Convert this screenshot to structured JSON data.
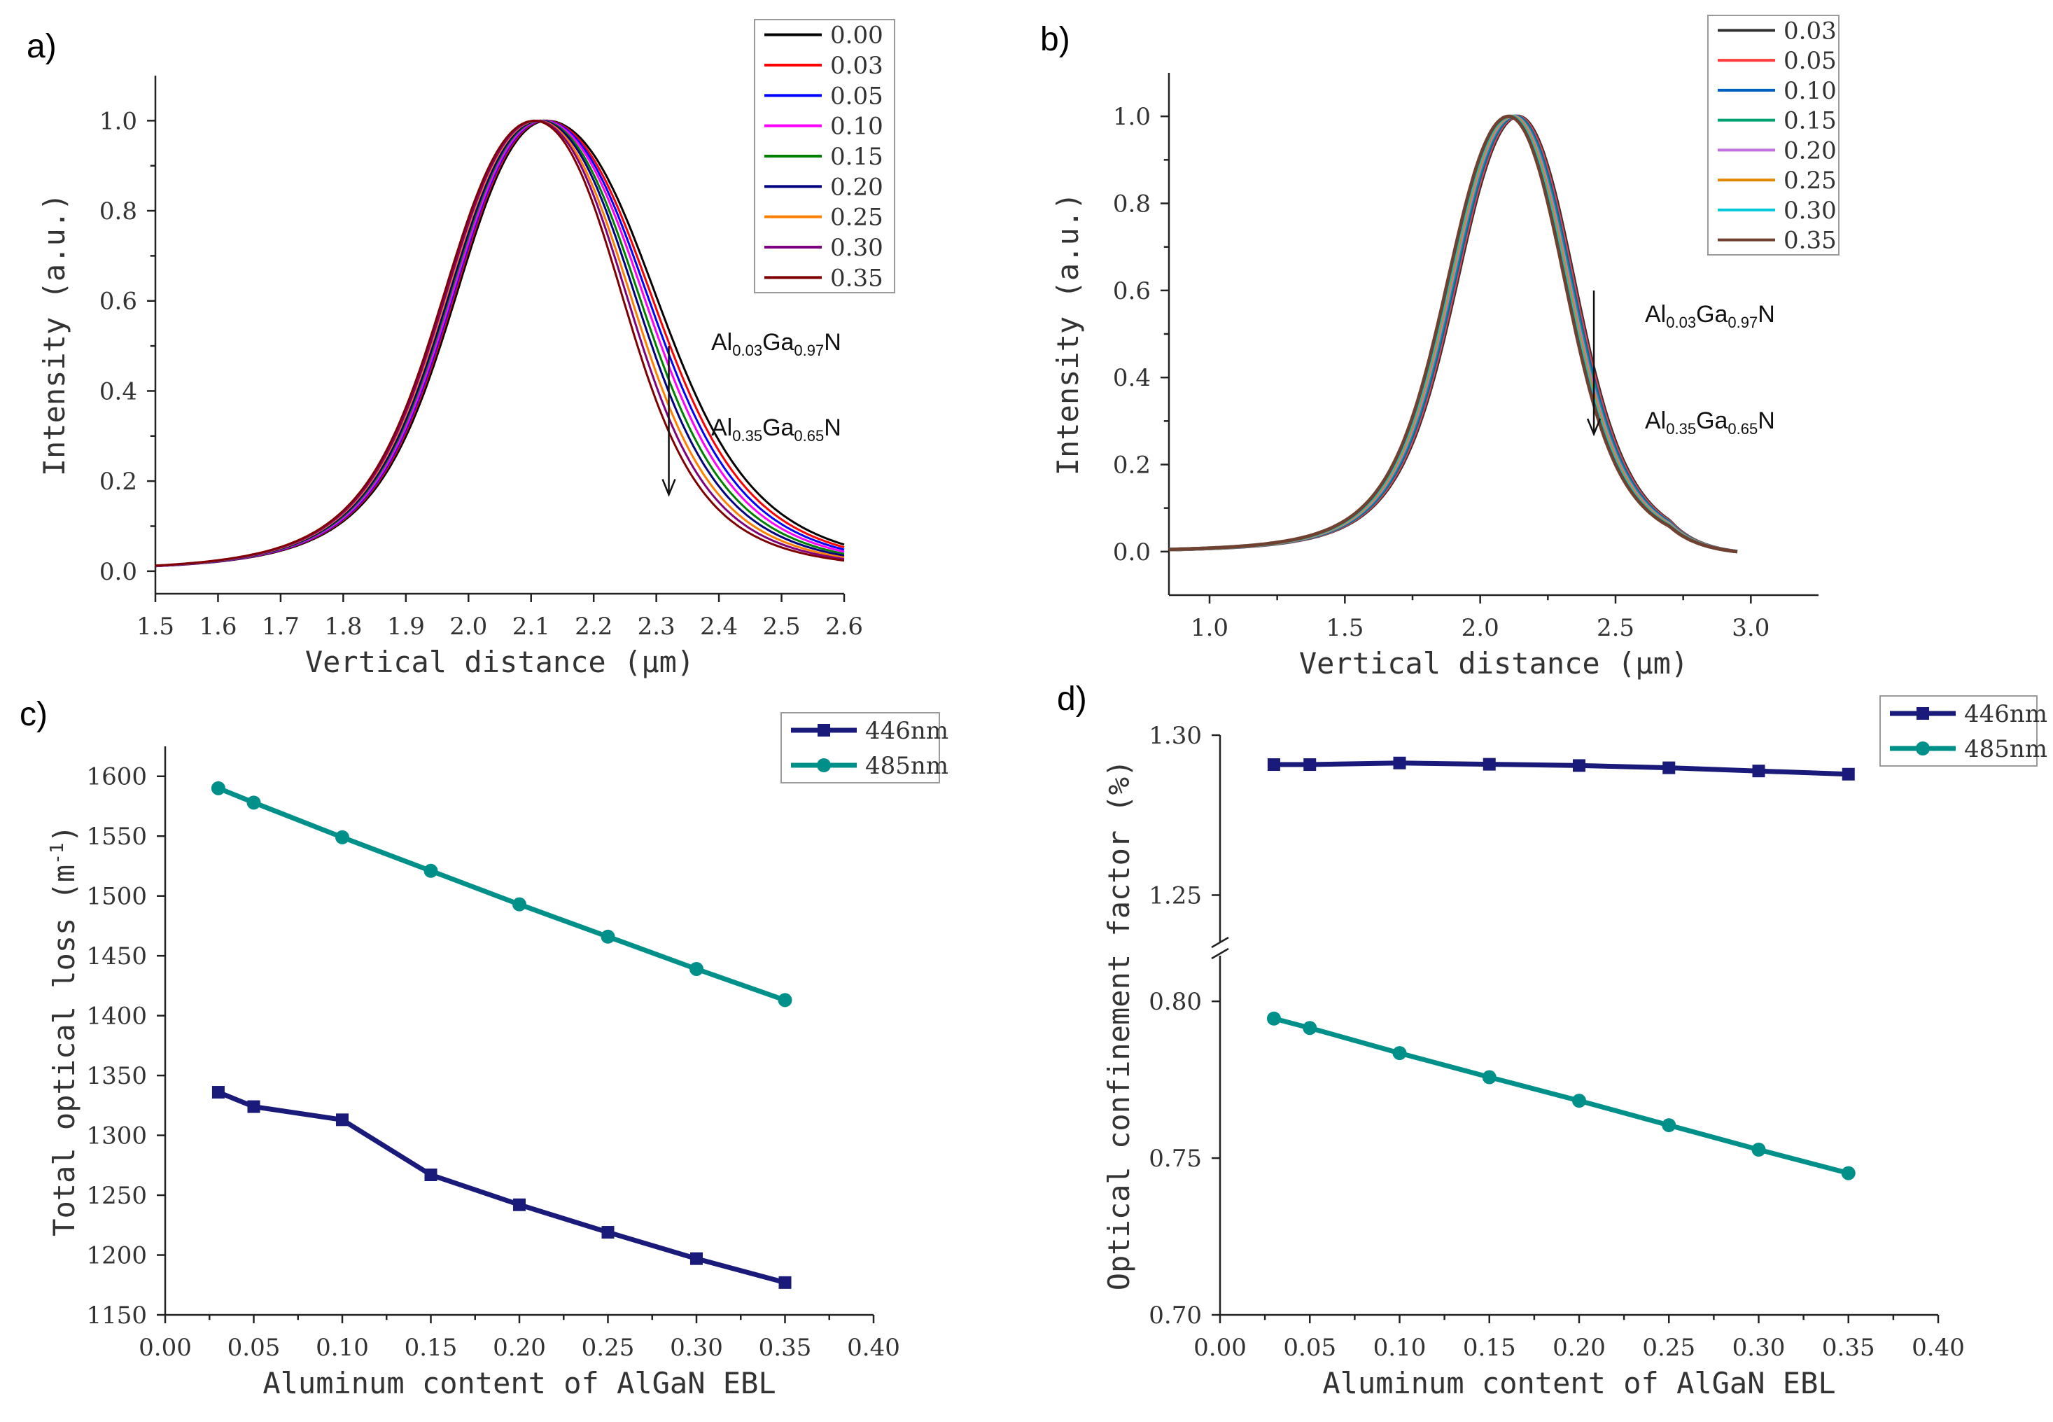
{
  "chart_data": [
    {
      "id": "a",
      "panel_label": "a)",
      "type": "line",
      "xlabel": "Vertical distance (μm)",
      "ylabel": "Intensity (a.u.)",
      "xlim": [
        1.5,
        2.6
      ],
      "ylim": [
        -0.05,
        1.1
      ],
      "xticks": [
        1.5,
        1.6,
        1.7,
        1.8,
        1.9,
        2.0,
        2.1,
        2.2,
        2.3,
        2.4,
        2.5,
        2.6
      ],
      "xtick_labels": [
        "1.5",
        "1.6",
        "1.7",
        "1.8",
        "1.9",
        "2.0",
        "2.1",
        "2.2",
        "2.3",
        "2.4",
        "2.5",
        "2.6"
      ],
      "yticks": [
        0.0,
        0.2,
        0.4,
        0.6,
        0.8,
        1.0
      ],
      "ytick_labels": [
        "0.0",
        "0.2",
        "0.4",
        "0.6",
        "0.8",
        "1.0"
      ],
      "legend_position": "top-right",
      "peak_x": 2.11,
      "annotations": {
        "upper": {
          "a": "Al",
          "as": "0.03",
          "b": "Ga",
          "bs": "0.97",
          "c": "N"
        },
        "lower": {
          "a": "Al",
          "as": "0.35",
          "b": "Ga",
          "bs": "0.65",
          "c": "N"
        }
      },
      "arrow": {
        "x": 2.32,
        "y_from": 0.5,
        "y_to": 0.17
      },
      "series": [
        {
          "name": "0.00",
          "color": "#000000",
          "peak_shift": 0.015,
          "right_width": 0.205
        },
        {
          "name": "0.03",
          "color": "#ff0000",
          "peak_shift": 0.012,
          "right_width": 0.2
        },
        {
          "name": "0.05",
          "color": "#0000ff",
          "peak_shift": 0.01,
          "right_width": 0.195
        },
        {
          "name": "0.10",
          "color": "#ff00ff",
          "peak_shift": 0.008,
          "right_width": 0.19
        },
        {
          "name": "0.15",
          "color": "#008000",
          "peak_shift": 0.005,
          "right_width": 0.185
        },
        {
          "name": "0.20",
          "color": "#000080",
          "peak_shift": 0.003,
          "right_width": 0.18
        },
        {
          "name": "0.25",
          "color": "#ff8000",
          "peak_shift": 0.0,
          "right_width": 0.175
        },
        {
          "name": "0.30",
          "color": "#800080",
          "peak_shift": -0.002,
          "right_width": 0.17
        },
        {
          "name": "0.35",
          "color": "#800000",
          "peak_shift": -0.005,
          "right_width": 0.165
        }
      ]
    },
    {
      "id": "b",
      "panel_label": "b)",
      "type": "line",
      "xlabel": "Vertical distance (μm)",
      "ylabel": "Intensity (a.u.)",
      "xlim": [
        0.85,
        3.25
      ],
      "ylim": [
        -0.1,
        1.1
      ],
      "xticks": [
        1.0,
        1.5,
        2.0,
        2.5,
        3.0
      ],
      "xtick_labels": [
        "1.0",
        "1.5",
        "2.0",
        "2.5",
        "3.0"
      ],
      "yticks": [
        0.0,
        0.2,
        0.4,
        0.6,
        0.8,
        1.0
      ],
      "ytick_labels": [
        "0.0",
        "0.2",
        "0.4",
        "0.6",
        "0.8",
        "1.0"
      ],
      "legend_position": "top-right",
      "peak_x": 2.12,
      "annotations": {
        "upper": {
          "a": "Al",
          "as": "0.03",
          "b": "Ga",
          "bs": "0.97",
          "c": "N"
        },
        "lower": {
          "a": "Al",
          "as": "0.35",
          "b": "Ga",
          "bs": "0.65",
          "c": "N"
        }
      },
      "arrow": {
        "x": 2.42,
        "y_from": 0.6,
        "y_to": 0.27
      },
      "series": [
        {
          "name": "0.03",
          "color": "#333333",
          "peak_shift": 0.02
        },
        {
          "name": "0.05",
          "color": "#ff3b3b",
          "peak_shift": 0.015
        },
        {
          "name": "0.10",
          "color": "#0060c0",
          "peak_shift": 0.01
        },
        {
          "name": "0.15",
          "color": "#00a070",
          "peak_shift": 0.005
        },
        {
          "name": "0.20",
          "color": "#c070e0",
          "peak_shift": 0.0
        },
        {
          "name": "0.25",
          "color": "#e08800",
          "peak_shift": -0.005
        },
        {
          "name": "0.30",
          "color": "#00c8d8",
          "peak_shift": -0.01
        },
        {
          "name": "0.35",
          "color": "#704030",
          "peak_shift": -0.015
        }
      ]
    },
    {
      "id": "c",
      "panel_label": "c)",
      "type": "line",
      "xlabel": "Aluminum content of AlGaN EBL",
      "ylabel": "Total optical loss (m",
      "ylabel_sup": "-1",
      "ylabel_end": ")",
      "xlim": [
        0.0,
        0.4
      ],
      "ylim": [
        1150,
        1625
      ],
      "xticks": [
        0.0,
        0.05,
        0.1,
        0.15,
        0.2,
        0.25,
        0.3,
        0.35,
        0.4
      ],
      "xtick_labels": [
        "0.00",
        "0.05",
        "0.10",
        "0.15",
        "0.20",
        "0.25",
        "0.30",
        "0.35",
        "0.40"
      ],
      "yticks": [
        1150,
        1200,
        1250,
        1300,
        1350,
        1400,
        1450,
        1500,
        1550,
        1600
      ],
      "ytick_labels": [
        "1150",
        "1200",
        "1250",
        "1300",
        "1350",
        "1400",
        "1450",
        "1500",
        "1550",
        "1600"
      ],
      "legend_position": "top-right",
      "x": [
        0.03,
        0.05,
        0.1,
        0.15,
        0.2,
        0.25,
        0.3,
        0.35
      ],
      "series": [
        {
          "name": "446nm",
          "color": "#1a1a7a",
          "marker": "square",
          "values": [
            1336,
            1324,
            1313,
            1267,
            1242,
            1219,
            1197,
            1177
          ]
        },
        {
          "name": "485nm",
          "color": "#00908a",
          "marker": "circle",
          "values": [
            1590,
            1578,
            1549,
            1521,
            1493,
            1466,
            1439,
            1413
          ]
        }
      ]
    },
    {
      "id": "d",
      "panel_label": "d)",
      "type": "line",
      "xlabel": "Aluminum content of AlGaN EBL",
      "ylabel": "Optical confinement factor (%)",
      "xlim": [
        0.0,
        0.4
      ],
      "y_break": {
        "lower": [
          0.7,
          0.815
        ],
        "upper": [
          1.235,
          1.3
        ]
      },
      "xticks": [
        0.0,
        0.05,
        0.1,
        0.15,
        0.2,
        0.25,
        0.3,
        0.35,
        0.4
      ],
      "xtick_labels": [
        "0.00",
        "0.05",
        "0.10",
        "0.15",
        "0.20",
        "0.25",
        "0.30",
        "0.35",
        "0.40"
      ],
      "yticks": [
        0.7,
        0.75,
        0.8,
        1.25,
        1.3
      ],
      "ytick_labels": [
        "0.70",
        "0.75",
        "0.80",
        "1.25",
        "1.30"
      ],
      "legend_position": "top-right",
      "x": [
        0.03,
        0.05,
        0.1,
        0.15,
        0.2,
        0.25,
        0.3,
        0.35
      ],
      "series": [
        {
          "name": "446nm",
          "color": "#1a1a7a",
          "marker": "square",
          "values": [
            1.2908,
            1.2908,
            1.2913,
            1.2909,
            1.2905,
            1.2898,
            1.2888,
            1.2878
          ]
        },
        {
          "name": "485nm",
          "color": "#00908a",
          "marker": "circle",
          "values": [
            0.7945,
            0.7915,
            0.7835,
            0.7758,
            0.7683,
            0.7605,
            0.7527,
            0.7452
          ]
        }
      ]
    }
  ]
}
